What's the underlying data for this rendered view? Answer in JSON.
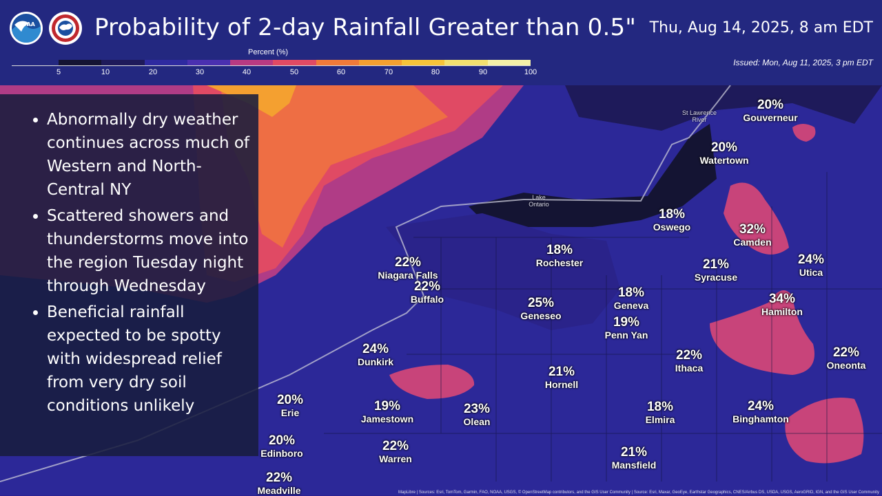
{
  "header": {
    "title": "Probability of 2-day Rainfall Greater than 0.5\"",
    "valid_date": "Thu, Aug 14, 2025, 8 am EDT",
    "issued": "Issued: Mon, Aug 11, 2025, 3 pm EDT",
    "logos": [
      "noaa-logo",
      "nws-logo"
    ]
  },
  "legend": {
    "title": "Percent (%)",
    "ticks": [
      "5",
      "10",
      "20",
      "30",
      "40",
      "50",
      "60",
      "70",
      "80",
      "90",
      "100"
    ],
    "colors": [
      "#141433",
      "#1e1a5a",
      "#2e2aa0",
      "#4a30b0",
      "#b83a82",
      "#e04a64",
      "#f07a3a",
      "#f4a030",
      "#f6c43a",
      "#f2e070",
      "#f4f0a8"
    ]
  },
  "bullets": [
    "Abnormally dry weather continues across much of Western and North-Central NY",
    "Scattered showers and thunderstorms move into the region Tuesday night through Wednesday",
    "Beneficial rainfall expected to be spotty with widespread relief from very dry soil conditions unlikely"
  ],
  "cities": [
    {
      "name": "Gouverneur",
      "pct": "20%"
    },
    {
      "name": "Watertown",
      "pct": "20%"
    },
    {
      "name": "Oswego",
      "pct": "18%"
    },
    {
      "name": "Camden",
      "pct": "32%"
    },
    {
      "name": "Rochester",
      "pct": "18%"
    },
    {
      "name": "Niagara Falls",
      "pct": "22%"
    },
    {
      "name": "Buffalo",
      "pct": "22%"
    },
    {
      "name": "Syracuse",
      "pct": "21%"
    },
    {
      "name": "Utica",
      "pct": "24%"
    },
    {
      "name": "Geneva",
      "pct": "18%"
    },
    {
      "name": "Hamilton",
      "pct": "34%"
    },
    {
      "name": "Geneseo",
      "pct": "25%"
    },
    {
      "name": "Penn Yan",
      "pct": "19%"
    },
    {
      "name": "Dunkirk",
      "pct": "24%"
    },
    {
      "name": "Ithaca",
      "pct": "22%"
    },
    {
      "name": "Oneonta",
      "pct": "22%"
    },
    {
      "name": "Hornell",
      "pct": "21%"
    },
    {
      "name": "Erie",
      "pct": "20%"
    },
    {
      "name": "Jamestown",
      "pct": "19%"
    },
    {
      "name": "Olean",
      "pct": "23%"
    },
    {
      "name": "Elmira",
      "pct": "18%"
    },
    {
      "name": "Binghamton",
      "pct": "24%"
    },
    {
      "name": "Edinboro",
      "pct": "20%"
    },
    {
      "name": "Warren",
      "pct": "22%"
    },
    {
      "name": "Mansfield",
      "pct": "21%"
    },
    {
      "name": "Meadville",
      "pct": "22%"
    }
  ],
  "water_labels": {
    "lake": "Lake\nOntario",
    "river": "St Lawrence\nRiver"
  },
  "credits": "MapLibre | Sources: Esri, TomTom, Garmin, FAO, NOAA, USGS, © OpenStreetMap contributors, and the GIS User Community | Source: Esri, Maxar, GeoEye, Earthstar Geographics, CNES/Airbus DS, USDA, USGS, AeroGRID, IGN, and the GIS User Community"
}
